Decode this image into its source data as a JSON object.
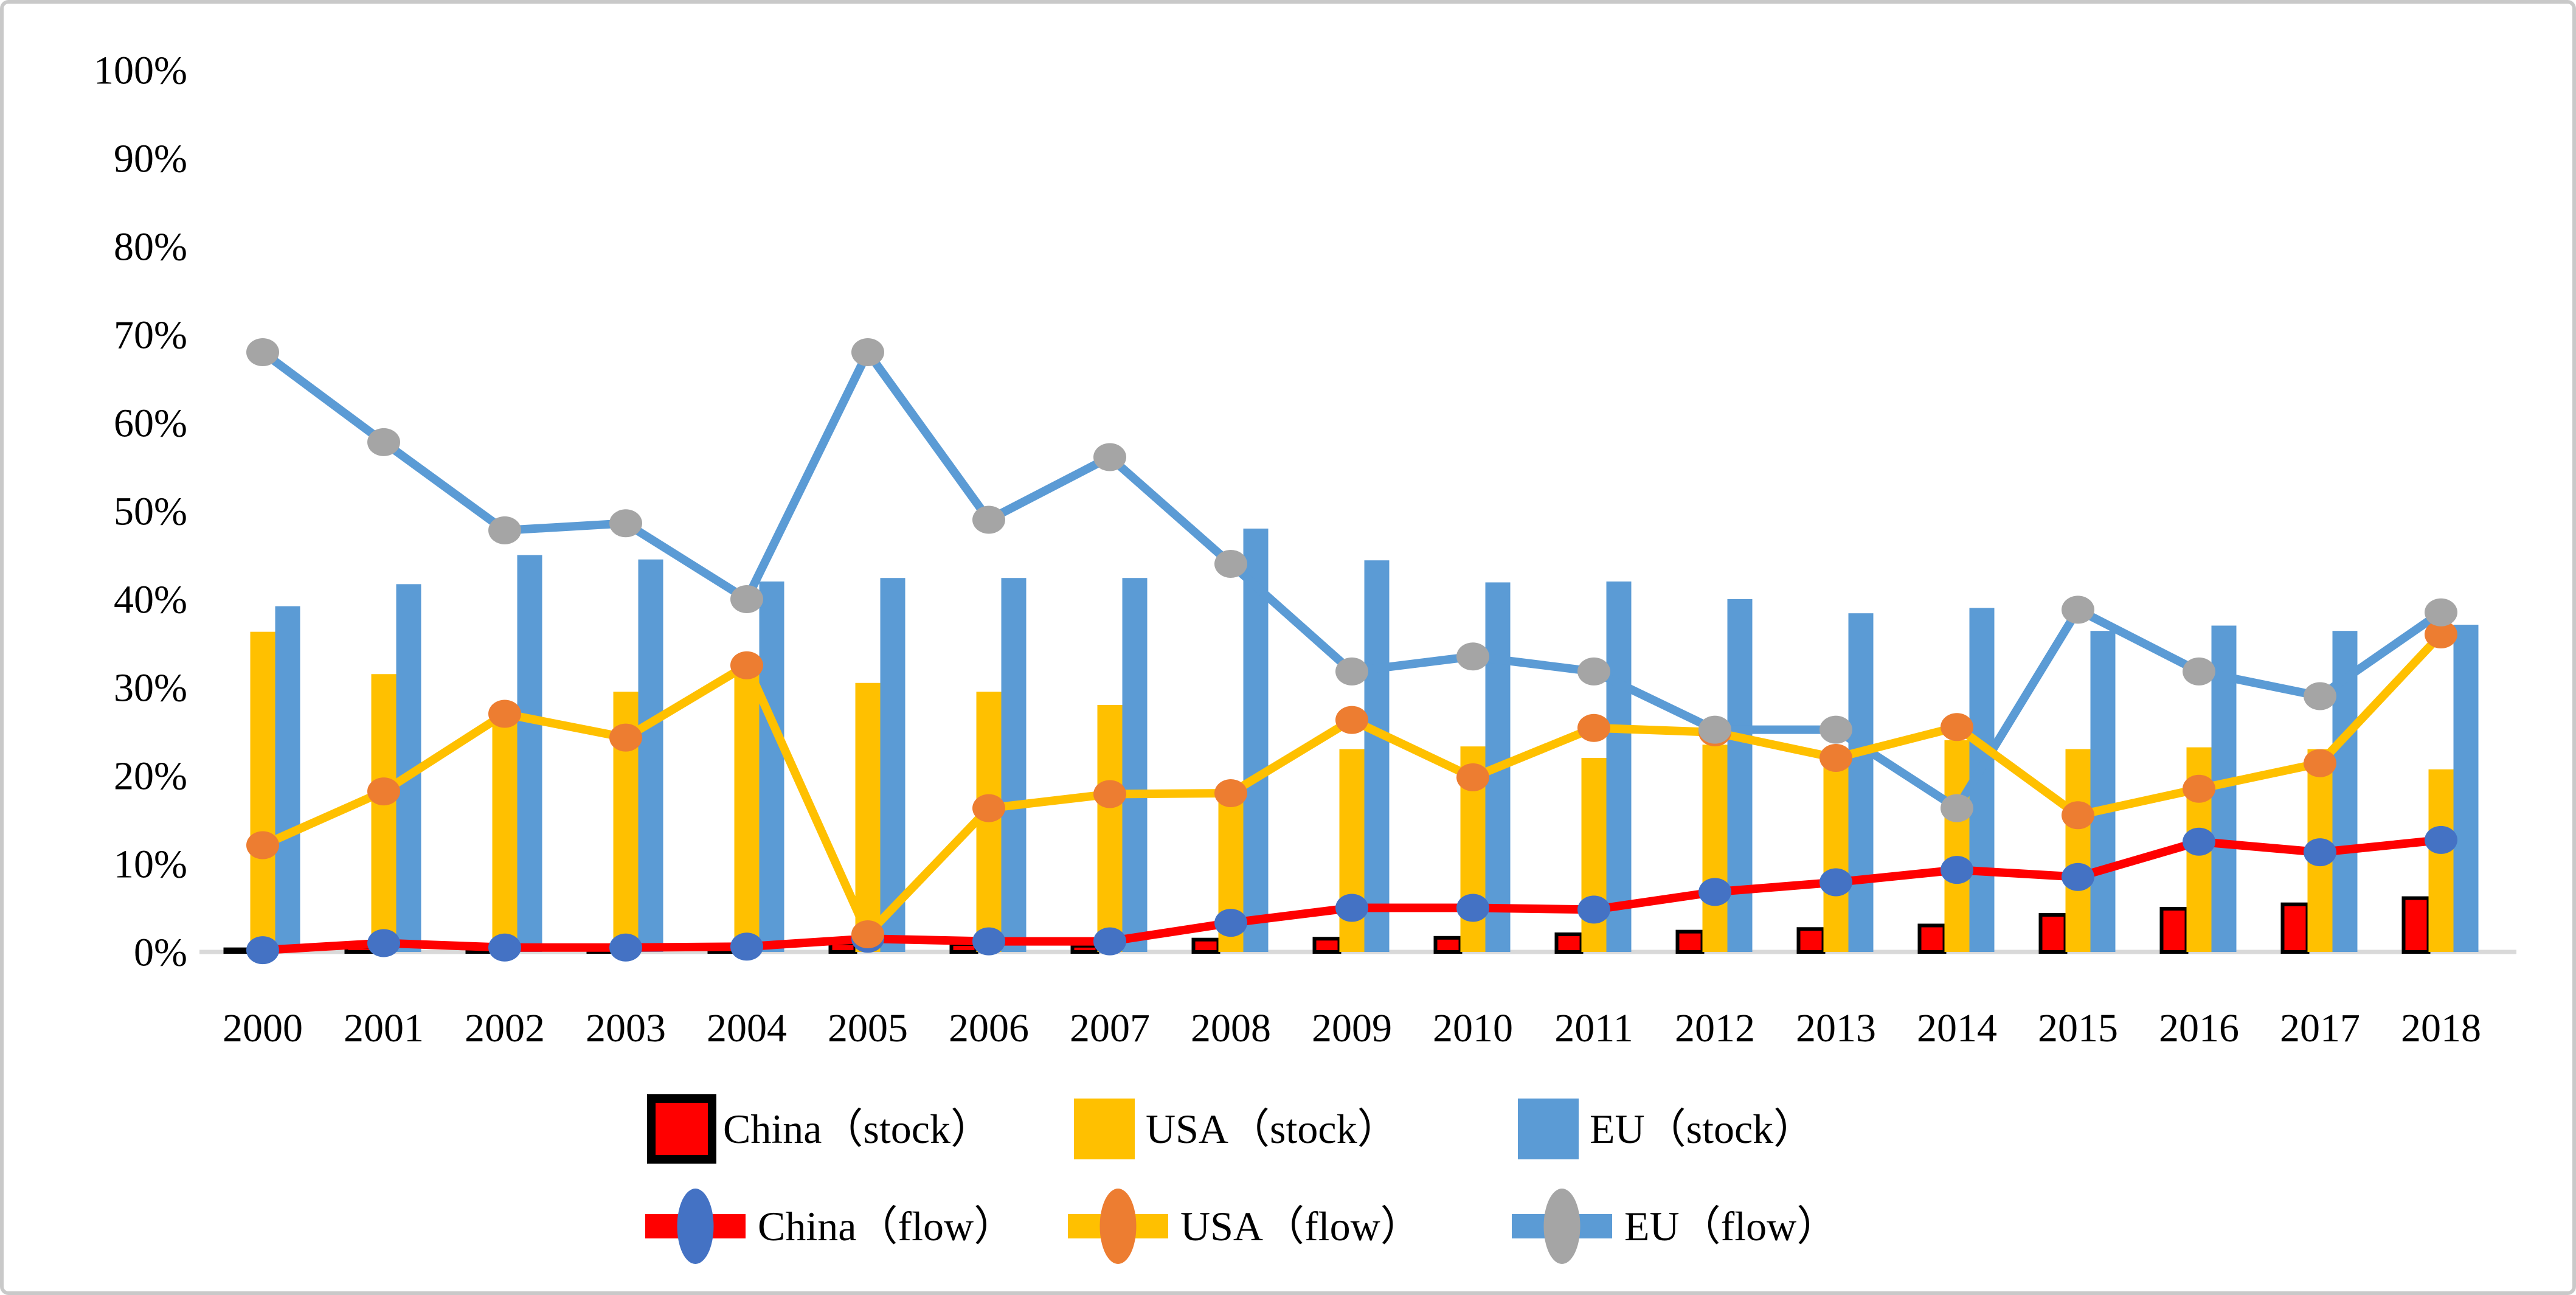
{
  "figure": {
    "background": "#ffffff",
    "border_color": "#c9c9c9"
  },
  "chart_data": {
    "type": "combo-bar-line",
    "title": "",
    "xlabel": "",
    "ylabel": "",
    "categories": [
      "2000",
      "2001",
      "2002",
      "2003",
      "2004",
      "2005",
      "2006",
      "2007",
      "2008",
      "2009",
      "2010",
      "2011",
      "2012",
      "2013",
      "2014",
      "2015",
      "2016",
      "2017",
      "2018"
    ],
    "y_axis": {
      "min": 0,
      "max": 100,
      "tick_step": 10,
      "tick_labels": [
        "0%",
        "10%",
        "20%",
        "30%",
        "40%",
        "50%",
        "60%",
        "70%",
        "80%",
        "90%",
        "100%"
      ],
      "format": "percent"
    },
    "grid": false,
    "axis_line_color": "#d9d9d9",
    "series": [
      {
        "name": "China（stock）",
        "type": "bar",
        "fill": "#ff0000",
        "stroke": "#000000",
        "values": [
          0.3,
          0.6,
          0.5,
          0.5,
          0.5,
          1.0,
          0.9,
          0.7,
          1.4,
          1.5,
          1.6,
          2.0,
          2.3,
          2.6,
          3.0,
          4.2,
          4.9,
          5.4,
          6.1
        ]
      },
      {
        "name": "USA（stock）",
        "type": "bar",
        "fill": "#ffc000",
        "stroke": "none",
        "values": [
          36.3,
          31.5,
          26.8,
          29.5,
          32.5,
          30.5,
          29.5,
          28.0,
          18.5,
          23.0,
          23.3,
          22.0,
          23.5,
          21.8,
          24.0,
          23.0,
          23.2,
          23.0,
          20.7
        ]
      },
      {
        "name": "EU（stock）",
        "type": "bar",
        "fill": "#5b9bd5",
        "stroke": "none",
        "values": [
          39.2,
          41.7,
          45.0,
          44.5,
          42.0,
          42.4,
          42.4,
          42.4,
          48.0,
          44.4,
          41.9,
          42.0,
          40.0,
          38.4,
          39.0,
          36.4,
          37.0,
          36.4,
          37.1
        ]
      },
      {
        "name": "China（flow）",
        "type": "line",
        "line_color": "#ff0000",
        "marker_color": "#4472c4",
        "values": [
          0.2,
          1.0,
          0.5,
          0.5,
          0.6,
          1.5,
          1.2,
          1.2,
          3.3,
          5.0,
          5.0,
          4.8,
          6.8,
          7.9,
          9.3,
          8.5,
          12.5,
          11.3,
          12.7
        ]
      },
      {
        "name": "USA（flow）",
        "type": "line",
        "line_color": "#ffc000",
        "marker_color": "#ed7d31",
        "values": [
          12.1,
          18.2,
          27.0,
          24.3,
          32.5,
          2.0,
          16.3,
          17.9,
          18.0,
          26.3,
          19.8,
          25.4,
          24.9,
          22.0,
          25.5,
          15.5,
          18.5,
          21.4,
          36.0
        ]
      },
      {
        "name": "EU（flow）",
        "type": "line",
        "line_color": "#5b9bd5",
        "marker_color": "#a5a5a5",
        "values": [
          68.0,
          57.8,
          47.8,
          48.6,
          40.0,
          68.0,
          49.0,
          56.1,
          44.0,
          31.8,
          33.5,
          31.8,
          25.2,
          25.2,
          16.3,
          38.8,
          31.8,
          29.0,
          38.5
        ]
      }
    ],
    "legend": {
      "position": "bottom",
      "rows": [
        [
          "China（stock）",
          "USA（stock）",
          "EU（stock）"
        ],
        [
          "China（flow）",
          "USA（flow）",
          "EU（flow）"
        ]
      ]
    }
  }
}
